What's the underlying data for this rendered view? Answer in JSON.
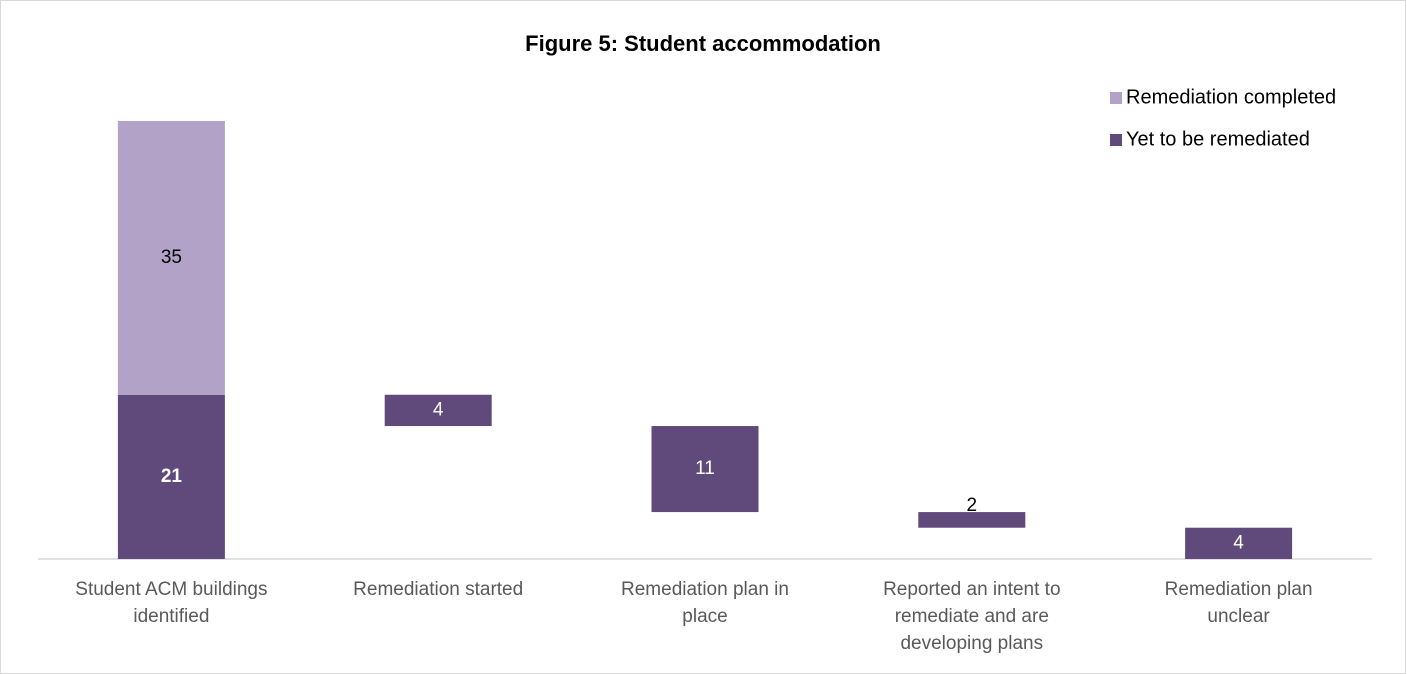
{
  "chart_data": {
    "type": "waterfall",
    "title": "Figure 5: Student accommodation",
    "categories": [
      "Student ACM buildings identified",
      "Remediation started",
      "Remediation plan in place",
      "Reported an intent to remediate and are developing plans",
      "Remediation plan unclear"
    ],
    "series": [
      {
        "name": "Remediation completed",
        "color": "#b3a2c7",
        "values": [
          35,
          null,
          null,
          null,
          null
        ]
      },
      {
        "name": "Yet to be remediated",
        "color": "#604a7b",
        "values": [
          21,
          4,
          11,
          2,
          4
        ]
      }
    ],
    "legend": "top-right"
  }
}
